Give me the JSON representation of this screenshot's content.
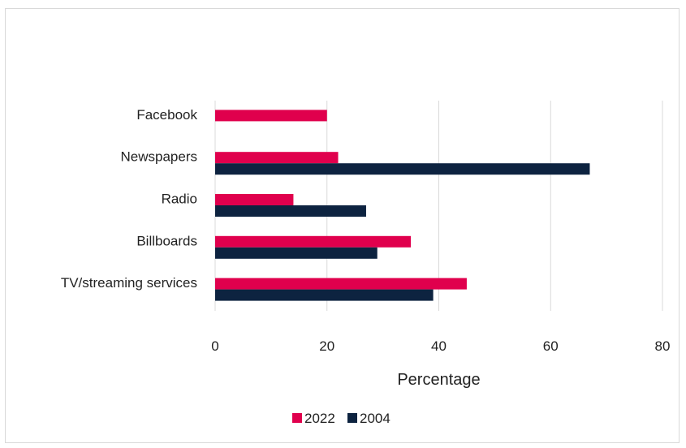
{
  "chart_data": {
    "type": "bar",
    "orientation": "horizontal",
    "categories": [
      "Facebook",
      "Newspapers",
      "Radio",
      "Billboards",
      "TV/streaming services"
    ],
    "series": [
      {
        "name": "2022",
        "values": [
          20,
          22,
          14,
          35,
          45
        ],
        "color": "#e0004d"
      },
      {
        "name": "2004",
        "values": [
          null,
          67,
          27,
          29,
          39
        ],
        "color": "#0d2340"
      }
    ],
    "xlabel": "Percentage",
    "xlim": [
      0,
      80
    ],
    "xticks": [
      0,
      20,
      40,
      60,
      80
    ],
    "grid": true,
    "legend": "bottom"
  }
}
